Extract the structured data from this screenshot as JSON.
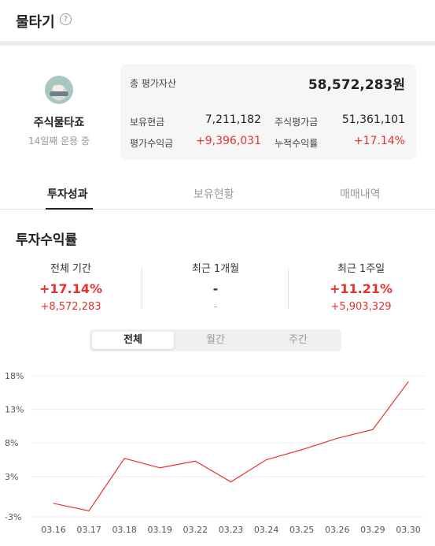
{
  "header": {
    "title": "물타기",
    "help_icon": "?"
  },
  "profile": {
    "name": "주식물타죠",
    "days": "14일째 운용 중",
    "avatar_icon": "profile-avatar"
  },
  "summary": {
    "total_label": "총 평가자산",
    "total_value": "58,572,283원",
    "cash_label": "보유현금",
    "cash_value": "7,211,182",
    "stock_eval_label": "주식평가금",
    "stock_eval_value": "51,361,101",
    "eval_profit_label": "평가수익금",
    "eval_profit_value": "+9,396,031",
    "cum_return_label": "누적수익률",
    "cum_return_value": "+17.14%"
  },
  "tabs": [
    {
      "label": "투자성과",
      "active": true
    },
    {
      "label": "보유현황",
      "active": false
    },
    {
      "label": "매매내역",
      "active": false
    }
  ],
  "section": {
    "title": "투자수익률"
  },
  "stats": [
    {
      "header": "전체 기간",
      "percent": "+17.14%",
      "amount": "+8,572,283"
    },
    {
      "header": "최근 1개월",
      "percent": "-",
      "amount": "-"
    },
    {
      "header": "최근 1주일",
      "percent": "+11.21%",
      "amount": "+5,903,329"
    }
  ],
  "period_selector": {
    "options": [
      "전체",
      "월간",
      "주간"
    ],
    "selected": "전체"
  },
  "colors": {
    "accent_red": "#e5322d",
    "text": "#222222",
    "muted": "#999999"
  },
  "chart_data": {
    "type": "line",
    "x": [
      "03.16",
      "03.17",
      "03.18",
      "03.19",
      "03.22",
      "03.23",
      "03.24",
      "03.25",
      "03.26",
      "03.29",
      "03.30"
    ],
    "series": [
      {
        "values": [
          -1.0,
          -2.1,
          5.7,
          4.3,
          5.3,
          2.2,
          5.5,
          7.0,
          8.7,
          10.0,
          17.1
        ]
      }
    ],
    "yticks": [
      "18%",
      "13%",
      "8%",
      "3%",
      "-3%"
    ],
    "ytick_values": [
      18,
      13,
      8,
      3,
      -3
    ],
    "ylim": [
      -3,
      18
    ],
    "grid": "horizontal",
    "line_color": "#e5322d"
  }
}
